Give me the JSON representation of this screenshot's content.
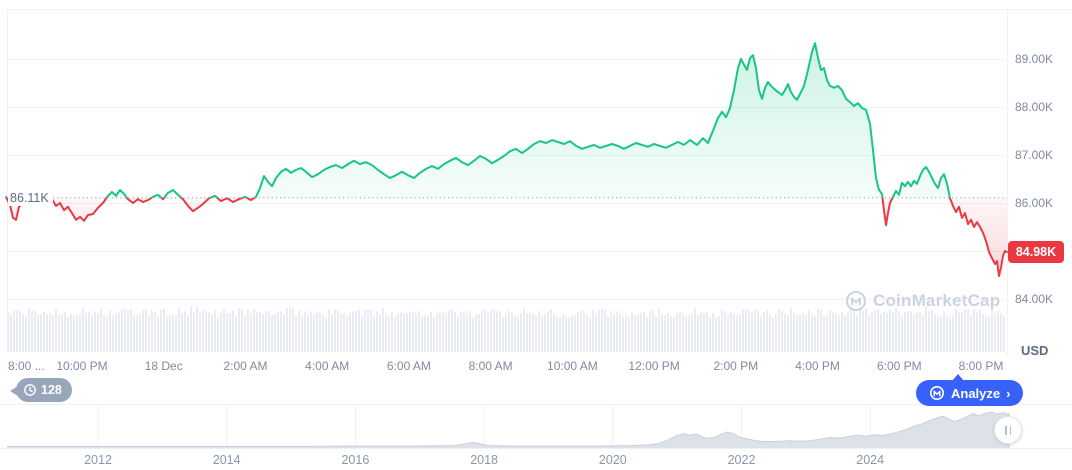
{
  "watermark": {
    "text": "CoinMarketCap"
  },
  "usd_label": "USD",
  "history_badge": {
    "count": "128"
  },
  "analyze_button": {
    "label": "Analyze",
    "chevron": "›"
  },
  "chart_data": {
    "type": "line",
    "unit": "USD",
    "baseline": {
      "label": "86.11K",
      "value": 86.11
    },
    "current": {
      "label": "84.98K",
      "value": 84.98
    },
    "y_ticks": [
      {
        "label": "89.00K",
        "value": 89
      },
      {
        "label": "88.00K",
        "value": 88
      },
      {
        "label": "87.00K",
        "value": 87
      },
      {
        "label": "86.00K",
        "value": 86
      },
      {
        "label": "84.00K",
        "value": 84
      }
    ],
    "y_gridline_values": [
      89,
      88,
      87,
      86,
      85,
      84
    ],
    "x_ticks": [
      "8:00 ...",
      "10:00 PM",
      "18 Dec",
      "2:00 AM",
      "4:00 AM",
      "6:00 AM",
      "8:00 AM",
      "10:00 AM",
      "12:00 PM",
      "2:00 PM",
      "4:00 PM",
      "6:00 PM",
      "8:00 PM"
    ],
    "series": [
      {
        "name": "price",
        "points": [
          [
            6,
            86.13
          ],
          [
            10,
            85.96
          ],
          [
            13,
            85.69
          ],
          [
            16,
            85.65
          ],
          [
            19,
            85.92
          ],
          [
            25,
            86.02
          ],
          [
            32,
            85.98
          ],
          [
            40,
            86.04
          ],
          [
            48,
            86.0
          ],
          [
            52,
            86.08
          ],
          [
            56,
            85.94
          ],
          [
            60,
            86.0
          ],
          [
            64,
            85.85
          ],
          [
            68,
            85.92
          ],
          [
            72,
            85.79
          ],
          [
            76,
            85.65
          ],
          [
            80,
            85.71
          ],
          [
            84,
            85.63
          ],
          [
            88,
            85.75
          ],
          [
            93,
            85.77
          ],
          [
            98,
            85.9
          ],
          [
            103,
            86.0
          ],
          [
            108,
            86.15
          ],
          [
            112,
            86.23
          ],
          [
            116,
            86.15
          ],
          [
            120,
            86.27
          ],
          [
            124,
            86.19
          ],
          [
            128,
            86.08
          ],
          [
            133,
            86.0
          ],
          [
            138,
            86.08
          ],
          [
            143,
            86.02
          ],
          [
            148,
            86.06
          ],
          [
            153,
            86.13
          ],
          [
            158,
            86.17
          ],
          [
            163,
            86.08
          ],
          [
            168,
            86.21
          ],
          [
            173,
            86.27
          ],
          [
            178,
            86.17
          ],
          [
            183,
            86.08
          ],
          [
            188,
            85.94
          ],
          [
            193,
            85.83
          ],
          [
            198,
            85.9
          ],
          [
            203,
            85.98
          ],
          [
            209,
            86.1
          ],
          [
            215,
            86.15
          ],
          [
            221,
            86.04
          ],
          [
            227,
            86.1
          ],
          [
            233,
            86.02
          ],
          [
            239,
            86.08
          ],
          [
            245,
            86.13
          ],
          [
            251,
            86.06
          ],
          [
            256,
            86.13
          ],
          [
            260,
            86.31
          ],
          [
            264,
            86.56
          ],
          [
            268,
            86.44
          ],
          [
            272,
            86.35
          ],
          [
            276,
            86.52
          ],
          [
            281,
            86.65
          ],
          [
            286,
            86.71
          ],
          [
            291,
            86.63
          ],
          [
            296,
            86.69
          ],
          [
            301,
            86.73
          ],
          [
            306,
            86.65
          ],
          [
            312,
            86.54
          ],
          [
            318,
            86.6
          ],
          [
            324,
            86.69
          ],
          [
            330,
            86.75
          ],
          [
            336,
            86.79
          ],
          [
            342,
            86.73
          ],
          [
            348,
            86.81
          ],
          [
            354,
            86.88
          ],
          [
            360,
            86.81
          ],
          [
            366,
            86.85
          ],
          [
            372,
            86.79
          ],
          [
            378,
            86.69
          ],
          [
            384,
            86.6
          ],
          [
            390,
            86.52
          ],
          [
            396,
            86.58
          ],
          [
            402,
            86.65
          ],
          [
            408,
            86.58
          ],
          [
            414,
            86.52
          ],
          [
            420,
            86.63
          ],
          [
            426,
            86.71
          ],
          [
            432,
            86.77
          ],
          [
            438,
            86.71
          ],
          [
            444,
            86.81
          ],
          [
            450,
            86.88
          ],
          [
            456,
            86.94
          ],
          [
            462,
            86.85
          ],
          [
            468,
            86.79
          ],
          [
            474,
            86.88
          ],
          [
            480,
            86.98
          ],
          [
            486,
            86.92
          ],
          [
            492,
            86.83
          ],
          [
            498,
            86.9
          ],
          [
            504,
            86.98
          ],
          [
            510,
            87.08
          ],
          [
            516,
            87.13
          ],
          [
            522,
            87.04
          ],
          [
            528,
            87.13
          ],
          [
            534,
            87.23
          ],
          [
            540,
            87.29
          ],
          [
            546,
            87.25
          ],
          [
            552,
            87.31
          ],
          [
            558,
            87.27
          ],
          [
            564,
            87.23
          ],
          [
            570,
            87.29
          ],
          [
            576,
            87.19
          ],
          [
            582,
            87.13
          ],
          [
            588,
            87.17
          ],
          [
            594,
            87.21
          ],
          [
            600,
            87.15
          ],
          [
            606,
            87.19
          ],
          [
            612,
            87.23
          ],
          [
            618,
            87.19
          ],
          [
            624,
            87.13
          ],
          [
            630,
            87.19
          ],
          [
            636,
            87.25
          ],
          [
            642,
            87.21
          ],
          [
            648,
            87.17
          ],
          [
            654,
            87.23
          ],
          [
            660,
            87.19
          ],
          [
            666,
            87.15
          ],
          [
            672,
            87.21
          ],
          [
            678,
            87.27
          ],
          [
            684,
            87.21
          ],
          [
            690,
            87.31
          ],
          [
            697,
            87.21
          ],
          [
            703,
            87.35
          ],
          [
            708,
            87.25
          ],
          [
            714,
            87.56
          ],
          [
            718,
            87.77
          ],
          [
            722,
            87.9
          ],
          [
            726,
            87.79
          ],
          [
            730,
            87.98
          ],
          [
            734,
            88.35
          ],
          [
            738,
            88.81
          ],
          [
            741,
            89.0
          ],
          [
            744,
            88.88
          ],
          [
            747,
            88.77
          ],
          [
            750,
            89.02
          ],
          [
            753,
            89.08
          ],
          [
            756,
            88.81
          ],
          [
            759,
            88.35
          ],
          [
            762,
            88.17
          ],
          [
            765,
            88.4
          ],
          [
            768,
            88.52
          ],
          [
            771,
            88.44
          ],
          [
            774,
            88.38
          ],
          [
            778,
            88.31
          ],
          [
            782,
            88.25
          ],
          [
            785,
            88.35
          ],
          [
            788,
            88.48
          ],
          [
            791,
            88.31
          ],
          [
            794,
            88.21
          ],
          [
            797,
            88.15
          ],
          [
            800,
            88.27
          ],
          [
            804,
            88.44
          ],
          [
            808,
            88.77
          ],
          [
            812,
            89.15
          ],
          [
            815,
            89.33
          ],
          [
            818,
            89.02
          ],
          [
            821,
            88.77
          ],
          [
            824,
            88.81
          ],
          [
            827,
            88.56
          ],
          [
            830,
            88.44
          ],
          [
            834,
            88.4
          ],
          [
            838,
            88.44
          ],
          [
            842,
            88.35
          ],
          [
            846,
            88.17
          ],
          [
            850,
            88.1
          ],
          [
            854,
            88.02
          ],
          [
            858,
            88.08
          ],
          [
            862,
            87.98
          ],
          [
            866,
            87.94
          ],
          [
            870,
            87.65
          ],
          [
            873,
            87.1
          ],
          [
            876,
            86.52
          ],
          [
            879,
            86.27
          ],
          [
            882,
            86.19
          ],
          [
            884,
            85.85
          ],
          [
            886,
            85.54
          ],
          [
            888,
            85.79
          ],
          [
            890,
            86.0
          ],
          [
            893,
            86.13
          ],
          [
            896,
            86.25
          ],
          [
            899,
            86.17
          ],
          [
            902,
            86.42
          ],
          [
            905,
            86.35
          ],
          [
            908,
            86.44
          ],
          [
            911,
            86.35
          ],
          [
            914,
            86.46
          ],
          [
            917,
            86.4
          ],
          [
            920,
            86.56
          ],
          [
            923,
            86.69
          ],
          [
            926,
            86.75
          ],
          [
            929,
            86.65
          ],
          [
            932,
            86.52
          ],
          [
            935,
            86.4
          ],
          [
            938,
            86.31
          ],
          [
            941,
            86.52
          ],
          [
            944,
            86.6
          ],
          [
            947,
            86.4
          ],
          [
            950,
            86.1
          ],
          [
            953,
            85.94
          ],
          [
            956,
            85.81
          ],
          [
            959,
            85.92
          ],
          [
            962,
            85.69
          ],
          [
            965,
            85.79
          ],
          [
            968,
            85.56
          ],
          [
            971,
            85.65
          ],
          [
            974,
            85.5
          ],
          [
            977,
            85.6
          ],
          [
            980,
            85.5
          ],
          [
            983,
            85.38
          ],
          [
            986,
            85.21
          ],
          [
            989,
            84.98
          ],
          [
            992,
            84.85
          ],
          [
            995,
            84.73
          ],
          [
            997,
            84.79
          ],
          [
            999,
            84.48
          ],
          [
            1001,
            84.65
          ],
          [
            1003,
            84.9
          ],
          [
            1005,
            85.0
          ],
          [
            1007,
            84.98
          ]
        ]
      }
    ],
    "colors": {
      "up": "#16c784",
      "down": "#ea3943",
      "baseline_dotted": "#9aa5b8",
      "grid": "#f0f2f5",
      "volume": "#e9edf3",
      "navigator_fill": "#dde2e9",
      "accent_blue": "#3861fb",
      "badge_gray": "#98a6bb",
      "axis_text": "#808a9d",
      "watermark": "#ccd3e0"
    },
    "navigator": {
      "type": "area",
      "year_ticks": [
        "2012",
        "2014",
        "2016",
        "2018",
        "2020",
        "2022",
        "2024"
      ],
      "points": [
        [
          7,
          0.04
        ],
        [
          60,
          0.04
        ],
        [
          120,
          0.04
        ],
        [
          180,
          0.04
        ],
        [
          240,
          0.04
        ],
        [
          300,
          0.04
        ],
        [
          360,
          0.05
        ],
        [
          420,
          0.05
        ],
        [
          455,
          0.06
        ],
        [
          465,
          0.1
        ],
        [
          473,
          0.14
        ],
        [
          481,
          0.1
        ],
        [
          490,
          0.06
        ],
        [
          510,
          0.05
        ],
        [
          540,
          0.05
        ],
        [
          570,
          0.05
        ],
        [
          600,
          0.05
        ],
        [
          630,
          0.06
        ],
        [
          650,
          0.08
        ],
        [
          660,
          0.12
        ],
        [
          668,
          0.2
        ],
        [
          676,
          0.3
        ],
        [
          684,
          0.36
        ],
        [
          690,
          0.32
        ],
        [
          696,
          0.35
        ],
        [
          702,
          0.28
        ],
        [
          708,
          0.24
        ],
        [
          714,
          0.26
        ],
        [
          720,
          0.33
        ],
        [
          727,
          0.4
        ],
        [
          733,
          0.36
        ],
        [
          739,
          0.28
        ],
        [
          745,
          0.24
        ],
        [
          752,
          0.2
        ],
        [
          760,
          0.17
        ],
        [
          770,
          0.16
        ],
        [
          780,
          0.17
        ],
        [
          790,
          0.18
        ],
        [
          800,
          0.17
        ],
        [
          810,
          0.18
        ],
        [
          820,
          0.22
        ],
        [
          830,
          0.26
        ],
        [
          840,
          0.25
        ],
        [
          850,
          0.29
        ],
        [
          858,
          0.32
        ],
        [
          866,
          0.29
        ],
        [
          874,
          0.33
        ],
        [
          882,
          0.31
        ],
        [
          890,
          0.35
        ],
        [
          898,
          0.4
        ],
        [
          906,
          0.46
        ],
        [
          914,
          0.54
        ],
        [
          922,
          0.6
        ],
        [
          929,
          0.68
        ],
        [
          936,
          0.74
        ],
        [
          943,
          0.8
        ],
        [
          949,
          0.72
        ],
        [
          955,
          0.66
        ],
        [
          961,
          0.72
        ],
        [
          967,
          0.78
        ],
        [
          973,
          0.86
        ],
        [
          979,
          0.8
        ],
        [
          985,
          0.86
        ],
        [
          991,
          0.9
        ],
        [
          997,
          0.85
        ],
        [
          1003,
          0.88
        ],
        [
          1010,
          0.84
        ]
      ]
    }
  }
}
